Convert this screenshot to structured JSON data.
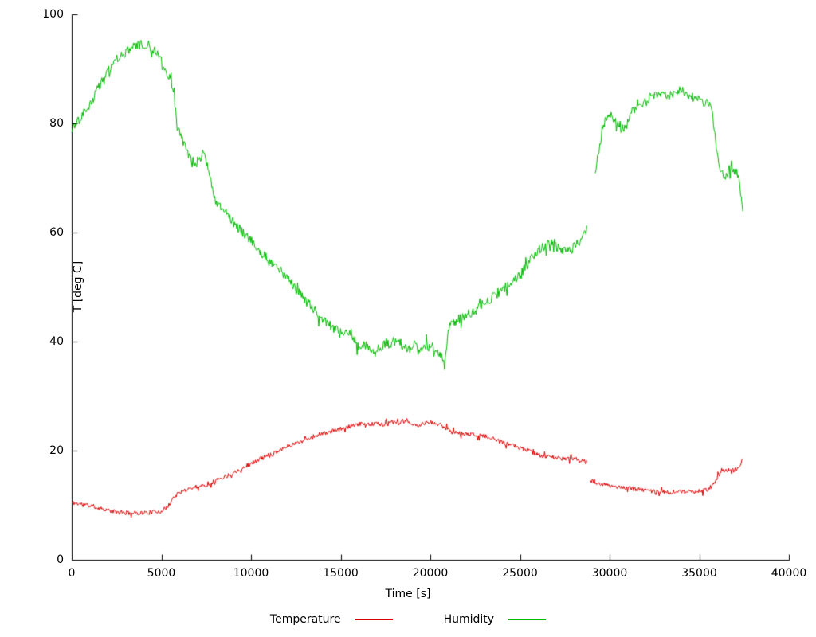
{
  "chart_data": {
    "type": "line",
    "title": "",
    "xlabel": "Time [s]",
    "ylabel": "T [deg C]",
    "xlim": [
      0,
      40000
    ],
    "ylim": [
      0,
      100
    ],
    "xticks": [
      0,
      5000,
      10000,
      15000,
      20000,
      25000,
      30000,
      35000,
      40000
    ],
    "yticks": [
      0,
      20,
      40,
      60,
      80,
      100
    ],
    "grid": false,
    "legend_position": "bottom-center",
    "series": [
      {
        "name": "Temperature",
        "color": "#dd0000",
        "noise": 0.4,
        "segments": [
          [
            [
              0,
              10.5
            ],
            [
              300,
              10.3
            ],
            [
              600,
              10.2
            ],
            [
              900,
              10.0
            ],
            [
              1200,
              9.8
            ],
            [
              1500,
              9.5
            ],
            [
              1800,
              9.3
            ],
            [
              2100,
              9.0
            ],
            [
              2400,
              8.8
            ],
            [
              2700,
              8.6
            ],
            [
              3000,
              8.6
            ],
            [
              3500,
              8.6
            ],
            [
              4000,
              8.6
            ],
            [
              4500,
              8.7
            ],
            [
              5000,
              9.0
            ],
            [
              5300,
              9.5
            ],
            [
              5500,
              10.5
            ],
            [
              5700,
              11.5
            ],
            [
              5900,
              12.0
            ],
            [
              6100,
              12.3
            ],
            [
              6300,
              12.8
            ],
            [
              6500,
              13.0
            ],
            [
              6800,
              13.3
            ],
            [
              7100,
              13.5
            ],
            [
              7400,
              13.6
            ],
            [
              7700,
              14.0
            ],
            [
              8000,
              14.5
            ],
            [
              8300,
              15.0
            ],
            [
              8600,
              15.3
            ],
            [
              8900,
              15.8
            ],
            [
              9200,
              16.3
            ],
            [
              9500,
              16.8
            ],
            [
              9800,
              17.3
            ],
            [
              10100,
              17.8
            ],
            [
              10400,
              18.3
            ],
            [
              10700,
              18.8
            ],
            [
              11000,
              19.2
            ],
            [
              11400,
              19.8
            ],
            [
              11800,
              20.5
            ],
            [
              12200,
              21.0
            ],
            [
              12600,
              21.5
            ],
            [
              13000,
              22.0
            ],
            [
              13400,
              22.5
            ],
            [
              13800,
              23.0
            ],
            [
              14200,
              23.3
            ],
            [
              14600,
              23.6
            ],
            [
              15000,
              24.0
            ],
            [
              15400,
              24.3
            ],
            [
              15800,
              24.6
            ],
            [
              16200,
              25.0
            ],
            [
              16600,
              24.8
            ],
            [
              17000,
              25.0
            ],
            [
              17400,
              24.8
            ],
            [
              17800,
              25.2
            ],
            [
              18200,
              25.0
            ],
            [
              18600,
              25.3
            ],
            [
              19000,
              25.0
            ],
            [
              19300,
              24.3
            ],
            [
              19600,
              25.0
            ],
            [
              19900,
              25.2
            ],
            [
              20200,
              25.0
            ],
            [
              20500,
              24.8
            ],
            [
              20800,
              24.3
            ],
            [
              21100,
              23.8
            ],
            [
              21400,
              23.3
            ],
            [
              21700,
              23.2
            ],
            [
              22000,
              23.0
            ],
            [
              22400,
              23.0
            ],
            [
              22800,
              22.8
            ],
            [
              23200,
              22.5
            ],
            [
              23600,
              22.0
            ],
            [
              24000,
              21.5
            ],
            [
              24400,
              21.0
            ],
            [
              24800,
              20.8
            ],
            [
              25200,
              20.3
            ],
            [
              25600,
              19.8
            ],
            [
              26000,
              19.3
            ],
            [
              26400,
              19.0
            ],
            [
              26800,
              18.8
            ],
            [
              27200,
              18.6
            ],
            [
              27600,
              18.6
            ],
            [
              28000,
              18.5
            ],
            [
              28400,
              18.3
            ],
            [
              28750,
              17.8
            ]
          ],
          [
            [
              28900,
              14.5
            ],
            [
              29200,
              14.2
            ],
            [
              29500,
              14.0
            ],
            [
              29800,
              13.8
            ],
            [
              30100,
              13.5
            ],
            [
              30400,
              13.3
            ],
            [
              30700,
              13.2
            ],
            [
              31000,
              13.2
            ],
            [
              31300,
              13.0
            ],
            [
              31600,
              13.0
            ],
            [
              31900,
              12.8
            ],
            [
              32200,
              12.6
            ],
            [
              32500,
              12.5
            ],
            [
              32800,
              12.5
            ],
            [
              33100,
              12.4
            ],
            [
              33400,
              12.4
            ],
            [
              33700,
              12.4
            ],
            [
              34000,
              12.4
            ],
            [
              34300,
              12.5
            ],
            [
              34600,
              12.4
            ],
            [
              34900,
              12.5
            ],
            [
              35200,
              12.6
            ],
            [
              35500,
              13.0
            ],
            [
              35700,
              13.5
            ],
            [
              35900,
              14.5
            ],
            [
              36100,
              15.5
            ],
            [
              36300,
              16.2
            ],
            [
              36500,
              16.4
            ],
            [
              36700,
              16.5
            ],
            [
              36900,
              16.4
            ],
            [
              37100,
              16.6
            ],
            [
              37300,
              17.0
            ],
            [
              37450,
              19.0
            ]
          ]
        ]
      },
      {
        "name": "Humidity",
        "color": "#00bb00",
        "noise": 0.9,
        "segments": [
          [
            [
              0,
              78.5
            ],
            [
              200,
              80.0
            ],
            [
              400,
              80.5
            ],
            [
              700,
              82.0
            ],
            [
              1000,
              83.0
            ],
            [
              1400,
              86.0
            ],
            [
              1800,
              88.5
            ],
            [
              2200,
              90.5
            ],
            [
              2600,
              92.0
            ],
            [
              3000,
              93.0
            ],
            [
              3400,
              94.0
            ],
            [
              3800,
              94.5
            ],
            [
              4200,
              94.5
            ],
            [
              4600,
              93.5
            ],
            [
              5000,
              91.5
            ],
            [
              5300,
              89.5
            ],
            [
              5600,
              87.0
            ],
            [
              5750,
              84.0
            ],
            [
              5850,
              80.0
            ],
            [
              5950,
              78.5
            ],
            [
              6100,
              77.5
            ],
            [
              6300,
              76.0
            ],
            [
              6500,
              74.5
            ],
            [
              6700,
              73.5
            ],
            [
              6900,
              72.5
            ],
            [
              7100,
              73.5
            ],
            [
              7300,
              74.5
            ],
            [
              7500,
              73.0
            ],
            [
              7700,
              70.0
            ],
            [
              7900,
              67.0
            ],
            [
              8100,
              65.5
            ],
            [
              8300,
              65.0
            ],
            [
              8500,
              64.0
            ],
            [
              8800,
              63.0
            ],
            [
              9100,
              61.5
            ],
            [
              9400,
              60.5
            ],
            [
              9700,
              59.5
            ],
            [
              10000,
              58.5
            ],
            [
              10400,
              57.0
            ],
            [
              10800,
              55.5
            ],
            [
              11200,
              54.0
            ],
            [
              11600,
              53.0
            ],
            [
              12000,
              52.0
            ],
            [
              12400,
              50.0
            ],
            [
              12800,
              48.5
            ],
            [
              13200,
              47.0
            ],
            [
              13600,
              45.5
            ],
            [
              14000,
              44.0
            ],
            [
              14400,
              43.0
            ],
            [
              14800,
              42.0
            ],
            [
              15200,
              41.0
            ],
            [
              15500,
              42.0
            ],
            [
              15800,
              40.0
            ],
            [
              16100,
              38.5
            ],
            [
              16400,
              39.5
            ],
            [
              16700,
              38.0
            ],
            [
              17000,
              38.5
            ],
            [
              17300,
              39.0
            ],
            [
              17600,
              40.0
            ],
            [
              17900,
              39.5
            ],
            [
              18200,
              40.5
            ],
            [
              18500,
              39.0
            ],
            [
              18800,
              38.5
            ],
            [
              19100,
              39.5
            ],
            [
              19400,
              38.5
            ],
            [
              19700,
              39.5
            ],
            [
              20000,
              38.5
            ],
            [
              20300,
              38.0
            ],
            [
              20600,
              37.2
            ],
            [
              20800,
              36.8
            ],
            [
              20900,
              38.0
            ],
            [
              21000,
              42.5
            ],
            [
              21200,
              43.5
            ],
            [
              21500,
              44.0
            ],
            [
              21800,
              44.5
            ],
            [
              22100,
              45.0
            ],
            [
              22400,
              45.5
            ],
            [
              22800,
              46.5
            ],
            [
              23200,
              47.5
            ],
            [
              23600,
              48.5
            ],
            [
              24000,
              49.5
            ],
            [
              24400,
              50.5
            ],
            [
              24800,
              51.5
            ],
            [
              25200,
              53.0
            ],
            [
              25500,
              54.5
            ],
            [
              25800,
              56.0
            ],
            [
              26100,
              57.0
            ],
            [
              26400,
              57.5
            ],
            [
              26700,
              58.0
            ],
            [
              27000,
              57.5
            ],
            [
              27300,
              57.0
            ],
            [
              27600,
              56.5
            ],
            [
              27900,
              57.0
            ],
            [
              28200,
              58.0
            ],
            [
              28500,
              59.0
            ],
            [
              28750,
              60.5
            ]
          ],
          [
            [
              29200,
              71.0
            ],
            [
              29350,
              74.0
            ],
            [
              29500,
              77.0
            ],
            [
              29650,
              79.5
            ],
            [
              29800,
              81.0
            ],
            [
              30000,
              81.5
            ],
            [
              30200,
              81.0
            ],
            [
              30400,
              80.5
            ],
            [
              30600,
              79.5
            ],
            [
              30800,
              79.0
            ],
            [
              31000,
              80.0
            ],
            [
              31200,
              82.0
            ],
            [
              31500,
              82.5
            ],
            [
              31800,
              83.5
            ],
            [
              32100,
              84.0
            ],
            [
              32400,
              85.5
            ],
            [
              32700,
              85.0
            ],
            [
              33000,
              85.5
            ],
            [
              33300,
              85.0
            ],
            [
              33600,
              85.5
            ],
            [
              33900,
              86.0
            ],
            [
              34200,
              86.0
            ],
            [
              34500,
              85.0
            ],
            [
              34800,
              84.5
            ],
            [
              35100,
              84.0
            ],
            [
              35400,
              84.0
            ],
            [
              35700,
              83.5
            ],
            [
              35800,
              80.0
            ],
            [
              35900,
              77.0
            ],
            [
              36000,
              74.5
            ],
            [
              36200,
              71.5
            ],
            [
              36400,
              70.0
            ],
            [
              36600,
              71.0
            ],
            [
              36800,
              72.5
            ],
            [
              37000,
              71.0
            ],
            [
              37200,
              70.5
            ],
            [
              37350,
              66.0
            ],
            [
              37450,
              62.5
            ]
          ]
        ]
      }
    ]
  }
}
